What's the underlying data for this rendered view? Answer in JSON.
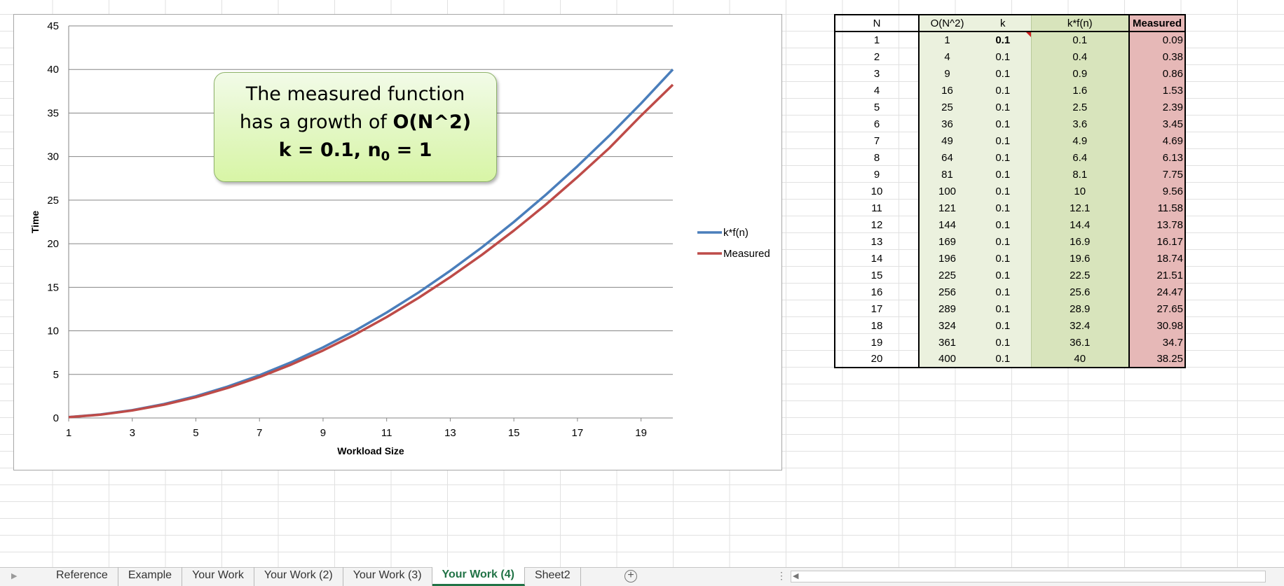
{
  "chart_data": {
    "type": "line",
    "xlabel": "Workload Size",
    "ylabel": "Time",
    "xlim": [
      1,
      20
    ],
    "ylim": [
      0,
      45
    ],
    "x_ticks": [
      1,
      3,
      5,
      7,
      9,
      11,
      13,
      15,
      17,
      19
    ],
    "y_ticks": [
      0,
      5,
      10,
      15,
      20,
      25,
      30,
      35,
      40,
      45
    ],
    "grid": true,
    "legend_position": "right",
    "x": [
      1,
      2,
      3,
      4,
      5,
      6,
      7,
      8,
      9,
      10,
      11,
      12,
      13,
      14,
      15,
      16,
      17,
      18,
      19,
      20
    ],
    "series": [
      {
        "name": "k*f(n)",
        "color": "#4a7ebb",
        "values": [
          0.1,
          0.4,
          0.9,
          1.6,
          2.5,
          3.6,
          4.9,
          6.4,
          8.1,
          10,
          12.1,
          14.4,
          16.9,
          19.6,
          22.5,
          25.6,
          28.9,
          32.4,
          36.1,
          40
        ]
      },
      {
        "name": "Measured",
        "color": "#be4b48",
        "values": [
          0.09,
          0.38,
          0.86,
          1.53,
          2.39,
          3.45,
          4.69,
          6.13,
          7.75,
          9.56,
          11.58,
          13.78,
          16.17,
          18.74,
          21.51,
          24.47,
          27.65,
          30.98,
          34.7,
          38.25
        ]
      }
    ]
  },
  "callout": {
    "line1": "The measured function",
    "line2_prefix": "has a growth of ",
    "line2_bold": "O(N^2)",
    "line3_k": "k = 0.1, n",
    "line3_sub": "0",
    "line3_rest": " = 1"
  },
  "table": {
    "headers": [
      "N",
      "O(N^2)",
      "k",
      "k*f(n)",
      "Measured"
    ],
    "rows": [
      [
        "1",
        "1",
        "0.1",
        "0.1",
        "0.09"
      ],
      [
        "2",
        "4",
        "0.1",
        "0.4",
        "0.38"
      ],
      [
        "3",
        "9",
        "0.1",
        "0.9",
        "0.86"
      ],
      [
        "4",
        "16",
        "0.1",
        "1.6",
        "1.53"
      ],
      [
        "5",
        "25",
        "0.1",
        "2.5",
        "2.39"
      ],
      [
        "6",
        "36",
        "0.1",
        "3.6",
        "3.45"
      ],
      [
        "7",
        "49",
        "0.1",
        "4.9",
        "4.69"
      ],
      [
        "8",
        "64",
        "0.1",
        "6.4",
        "6.13"
      ],
      [
        "9",
        "81",
        "0.1",
        "8.1",
        "7.75"
      ],
      [
        "10",
        "100",
        "0.1",
        "10",
        "9.56"
      ],
      [
        "11",
        "121",
        "0.1",
        "12.1",
        "11.58"
      ],
      [
        "12",
        "144",
        "0.1",
        "14.4",
        "13.78"
      ],
      [
        "13",
        "169",
        "0.1",
        "16.9",
        "16.17"
      ],
      [
        "14",
        "196",
        "0.1",
        "19.6",
        "18.74"
      ],
      [
        "15",
        "225",
        "0.1",
        "22.5",
        "21.51"
      ],
      [
        "16",
        "256",
        "0.1",
        "25.6",
        "24.47"
      ],
      [
        "17",
        "289",
        "0.1",
        "28.9",
        "27.65"
      ],
      [
        "18",
        "324",
        "0.1",
        "32.4",
        "30.98"
      ],
      [
        "19",
        "361",
        "0.1",
        "36.1",
        "34.7"
      ],
      [
        "20",
        "400",
        "0.1",
        "40",
        "38.25"
      ]
    ]
  },
  "sheet_tabs": [
    "Reference",
    "Example",
    "Your Work",
    "Your Work (2)",
    "Your Work (3)",
    "Your Work (4)",
    "Sheet2"
  ],
  "active_tab": "Your Work (4)",
  "tabbar": {
    "nav_icon": "caret-right-icon",
    "add_sheet_icon": "plus-circle-icon",
    "add_sheet_glyph": "+",
    "split_icon": "vertical-dots-icon",
    "scroll_left_glyph": "◀"
  }
}
